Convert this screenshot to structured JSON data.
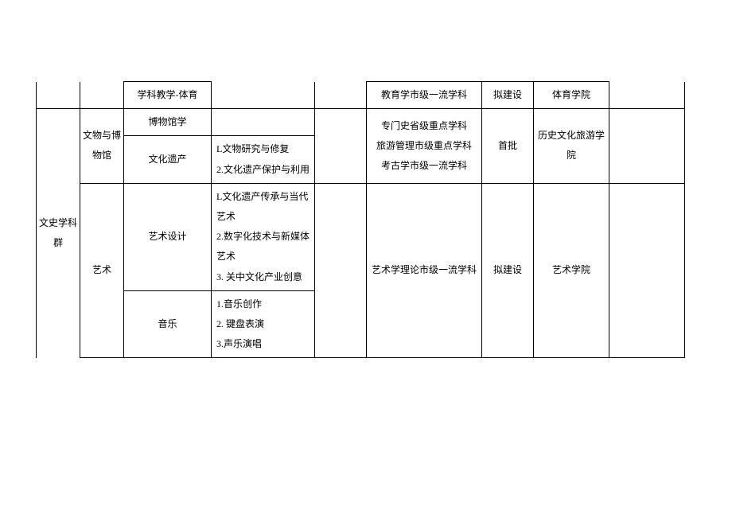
{
  "columns": {
    "c1_width": 55,
    "c2_width": 55,
    "c3_width": 110,
    "c4_width": 130,
    "c5_width": 65,
    "c6_width": 145,
    "c7_width": 65,
    "c8_width": 95,
    "c9_width": 95
  },
  "row1": {
    "subject": "学科教学-体育",
    "level": "教育学市级一流学科",
    "status": "拟建设",
    "college": "体育学院"
  },
  "block1": {
    "group_label": "文史学科群",
    "dept1": "文物与博物馆",
    "subj_a": "博物馆学",
    "subj_b": "文化遗产",
    "desc_b": "L文物研究与修复\n2.文化遗产保护与利用",
    "levels": "专门史省级重点学科\n旅游管理市级重点学科\n考古学市级一流学科",
    "status": "首批",
    "college": "历史文化旅游学院"
  },
  "block2": {
    "dept": "艺术",
    "subj_a": "艺术设计",
    "desc_a": "L文化遗产传承与当代艺术\n2.数字化技术与新媒体艺术\n3. 关中文化产业创意",
    "subj_b": "音乐",
    "desc_b": "1.音乐创作\n2. 键盘表演\n3.声乐演唱",
    "level": "艺术学理论市级一流学科",
    "status": "拟建设",
    "college": "艺术学院"
  }
}
